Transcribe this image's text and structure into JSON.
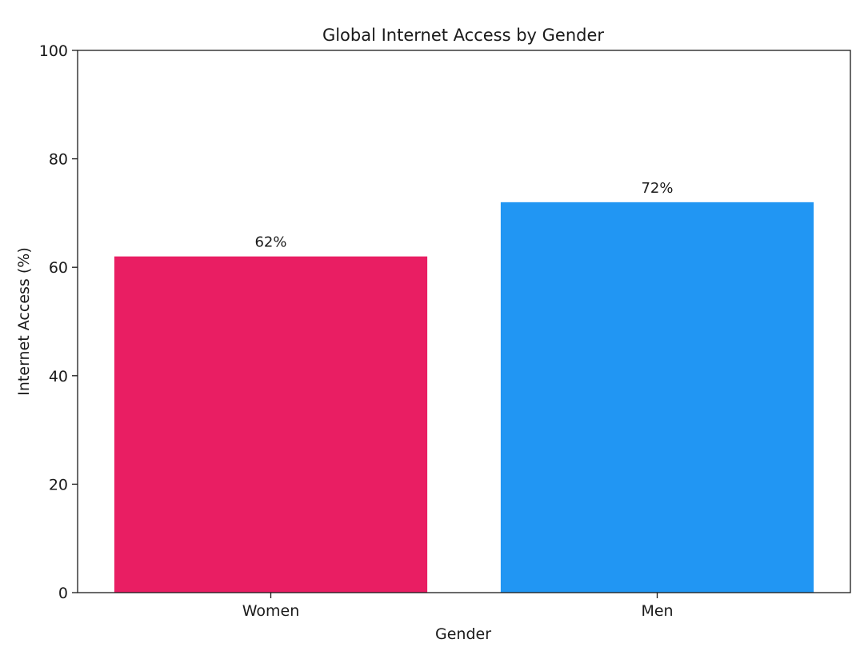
{
  "chart_data": {
    "type": "bar",
    "title": "Global Internet Access by Gender",
    "xlabel": "Gender",
    "ylabel": "Internet Access (%)",
    "categories": [
      "Women",
      "Men"
    ],
    "values": [
      62,
      72
    ],
    "value_labels": [
      "62%",
      "72%"
    ],
    "colors": [
      "#e91e63",
      "#2196f3"
    ],
    "ylim": [
      0,
      100
    ],
    "yticks": [
      0,
      20,
      40,
      60,
      80,
      100
    ],
    "grid": false,
    "legend": "none"
  }
}
